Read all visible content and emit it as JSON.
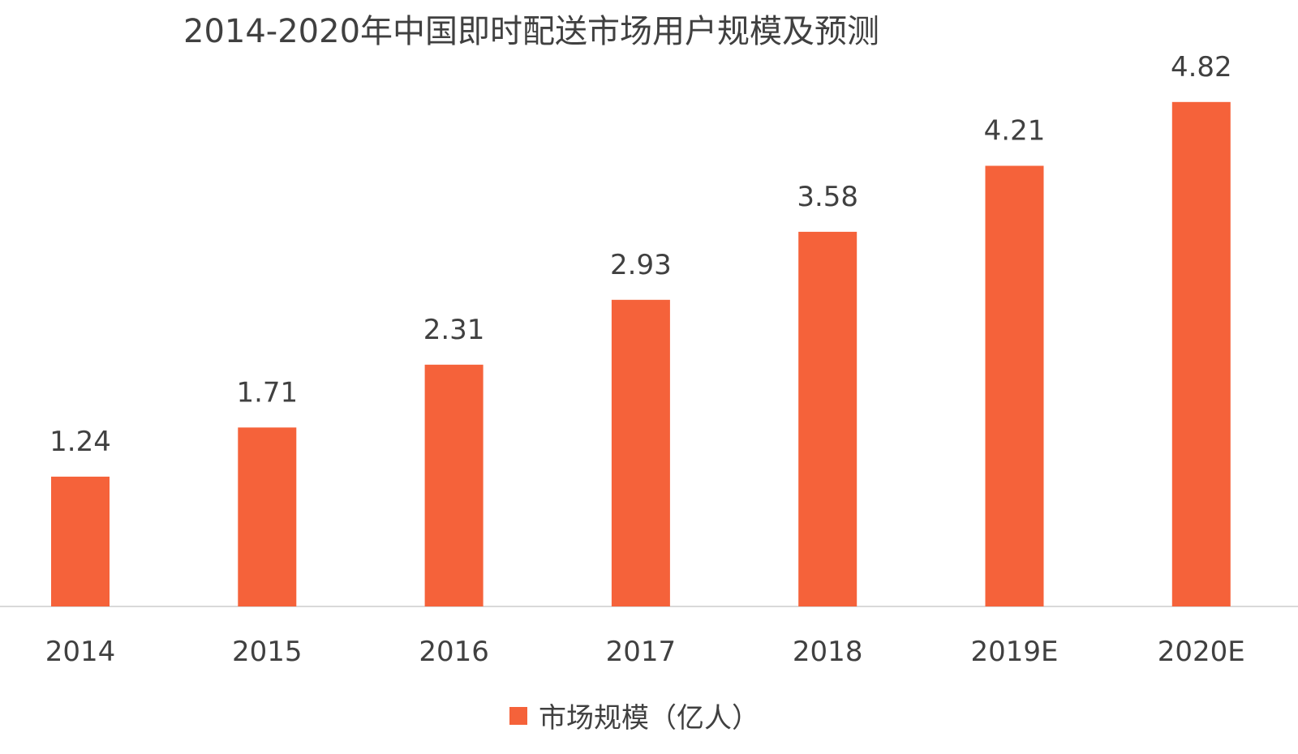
{
  "chart_data": {
    "type": "bar",
    "title": "2014-2020年中国即时配送市场用户规模及预测",
    "categories": [
      "2014",
      "2015",
      "2016",
      "2017",
      "2018",
      "2019E",
      "2020E"
    ],
    "series": [
      {
        "name": "市场规模（亿人）",
        "values": [
          1.24,
          1.71,
          2.31,
          2.93,
          3.58,
          4.21,
          4.82
        ],
        "color": "#F5623A"
      }
    ],
    "xlabel": "",
    "ylabel": "",
    "ylim": [
      0,
      5.5
    ],
    "grid": false,
    "data_labels": true,
    "legend_position": "bottom"
  }
}
